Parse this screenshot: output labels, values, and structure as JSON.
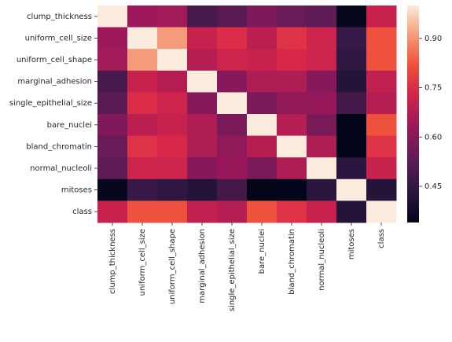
{
  "chart_data": {
    "type": "heatmap",
    "title": "",
    "xlabel": "",
    "ylabel": "",
    "row_labels": [
      "clump_thickness",
      "uniform_cell_size",
      "uniform_cell_shape",
      "marginal_adhesion",
      "single_epithelial_size",
      "bare_nuclei",
      "bland_chromatin",
      "normal_nucleoli",
      "mitoses",
      "class"
    ],
    "col_labels": [
      "clump_thickness",
      "uniform_cell_size",
      "uniform_cell_shape",
      "marginal_adhesion",
      "single_epithelial_size",
      "bare_nuclei",
      "bland_chromatin",
      "normal_nucleoli",
      "mitoses",
      "class"
    ],
    "matrix": [
      [
        1.0,
        0.64,
        0.65,
        0.49,
        0.52,
        0.59,
        0.55,
        0.53,
        0.35,
        0.71
      ],
      [
        0.64,
        1.0,
        0.91,
        0.71,
        0.75,
        0.69,
        0.76,
        0.72,
        0.46,
        0.82
      ],
      [
        0.65,
        0.91,
        1.0,
        0.68,
        0.72,
        0.71,
        0.74,
        0.72,
        0.44,
        0.82
      ],
      [
        0.49,
        0.71,
        0.68,
        1.0,
        0.6,
        0.67,
        0.67,
        0.6,
        0.42,
        0.7
      ],
      [
        0.52,
        0.75,
        0.72,
        0.6,
        1.0,
        0.58,
        0.62,
        0.63,
        0.48,
        0.68
      ],
      [
        0.59,
        0.69,
        0.71,
        0.67,
        0.58,
        1.0,
        0.68,
        0.58,
        0.34,
        0.82
      ],
      [
        0.55,
        0.76,
        0.74,
        0.67,
        0.62,
        0.68,
        1.0,
        0.67,
        0.34,
        0.76
      ],
      [
        0.53,
        0.72,
        0.72,
        0.6,
        0.63,
        0.58,
        0.67,
        1.0,
        0.43,
        0.71
      ],
      [
        0.35,
        0.46,
        0.44,
        0.42,
        0.48,
        0.34,
        0.34,
        0.43,
        1.0,
        0.42
      ],
      [
        0.71,
        0.82,
        0.82,
        0.7,
        0.68,
        0.82,
        0.76,
        0.71,
        0.42,
        1.0
      ]
    ],
    "colorbar": {
      "range": [
        0.34,
        1.0
      ],
      "ticks": [
        0.45,
        0.6,
        0.75,
        0.9
      ],
      "tick_labels": [
        "0.45",
        "0.60",
        "0.75",
        "0.90"
      ]
    },
    "colormap": "rocket",
    "grid": false
  }
}
